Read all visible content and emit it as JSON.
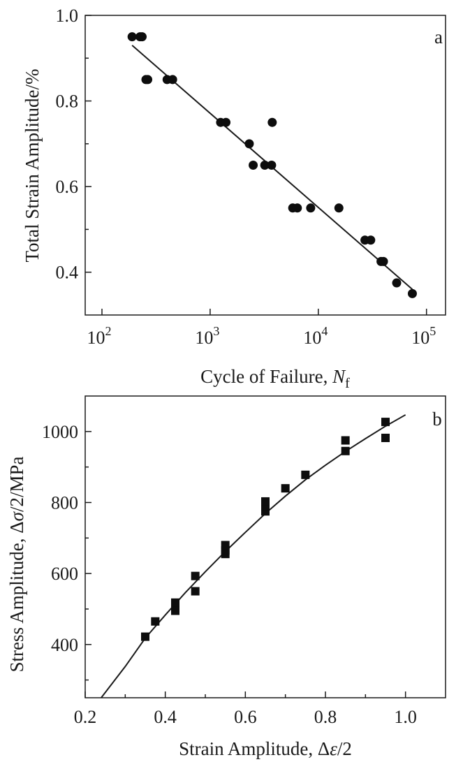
{
  "chart_data": [
    {
      "type": "scatter",
      "panel_label": "a",
      "xlabel": "Cycle of Failure, ",
      "xlabel_var": "N",
      "xlabel_sub": "f",
      "ylabel": "Total Strain Amplitude/%",
      "x_scale": "log",
      "xlim": [
        70,
        150000
      ],
      "ylim": [
        0.3,
        1.0
      ],
      "x_ticks": [
        100,
        1000,
        10000,
        100000
      ],
      "x_tick_labels": [
        {
          "base": "10",
          "exp": "2"
        },
        {
          "base": "10",
          "exp": "3"
        },
        {
          "base": "10",
          "exp": "4"
        },
        {
          "base": "10",
          "exp": "5"
        }
      ],
      "y_ticks": [
        0.4,
        0.6,
        0.8,
        1.0
      ],
      "y_tick_labels": [
        "0.4",
        "0.6",
        "0.8",
        "1.0"
      ],
      "marker": "circle",
      "grid": false,
      "points": [
        {
          "x": 190,
          "y": 0.95
        },
        {
          "x": 225,
          "y": 0.95
        },
        {
          "x": 235,
          "y": 0.95
        },
        {
          "x": 255,
          "y": 0.85
        },
        {
          "x": 265,
          "y": 0.85
        },
        {
          "x": 400,
          "y": 0.85
        },
        {
          "x": 450,
          "y": 0.85
        },
        {
          "x": 1250,
          "y": 0.75
        },
        {
          "x": 1400,
          "y": 0.75
        },
        {
          "x": 2300,
          "y": 0.7
        },
        {
          "x": 2500,
          "y": 0.65
        },
        {
          "x": 3200,
          "y": 0.65
        },
        {
          "x": 3700,
          "y": 0.65
        },
        {
          "x": 3750,
          "y": 0.75
        },
        {
          "x": 5800,
          "y": 0.55
        },
        {
          "x": 6400,
          "y": 0.55
        },
        {
          "x": 8500,
          "y": 0.55
        },
        {
          "x": 15500,
          "y": 0.55
        },
        {
          "x": 27000,
          "y": 0.475
        },
        {
          "x": 30500,
          "y": 0.475
        },
        {
          "x": 38000,
          "y": 0.425
        },
        {
          "x": 40000,
          "y": 0.425
        },
        {
          "x": 53000,
          "y": 0.375
        },
        {
          "x": 74000,
          "y": 0.35
        }
      ],
      "fit_line": {
        "x": [
          190,
          74000
        ],
        "y": [
          0.93,
          0.36
        ]
      }
    },
    {
      "type": "scatter",
      "panel_label": "b",
      "xlabel": "Strain Amplitude, Δ",
      "xlabel_var": "ε",
      "xlabel_tail": "/2",
      "ylabel": "Stress Amplitude, Δ",
      "ylabel_var": "σ",
      "ylabel_tail": "/2/MPa",
      "xlim": [
        0.2,
        1.1
      ],
      "ylim": [
        250,
        1100
      ],
      "x_ticks": [
        0.2,
        0.4,
        0.6,
        0.8,
        1.0
      ],
      "x_tick_labels": [
        "0.2",
        "0.4",
        "0.6",
        "0.8",
        "1.0"
      ],
      "y_ticks": [
        400,
        600,
        800,
        1000
      ],
      "y_tick_labels": [
        "400",
        "600",
        "800",
        "1000"
      ],
      "marker": "square",
      "grid": false,
      "points": [
        {
          "x": 0.35,
          "y": 422
        },
        {
          "x": 0.375,
          "y": 465
        },
        {
          "x": 0.425,
          "y": 495
        },
        {
          "x": 0.425,
          "y": 505
        },
        {
          "x": 0.425,
          "y": 518
        },
        {
          "x": 0.475,
          "y": 550
        },
        {
          "x": 0.475,
          "y": 593
        },
        {
          "x": 0.55,
          "y": 655
        },
        {
          "x": 0.55,
          "y": 665
        },
        {
          "x": 0.55,
          "y": 680
        },
        {
          "x": 0.65,
          "y": 775
        },
        {
          "x": 0.65,
          "y": 790
        },
        {
          "x": 0.65,
          "y": 803
        },
        {
          "x": 0.7,
          "y": 840
        },
        {
          "x": 0.75,
          "y": 878
        },
        {
          "x": 0.85,
          "y": 945
        },
        {
          "x": 0.85,
          "y": 975
        },
        {
          "x": 0.95,
          "y": 982
        },
        {
          "x": 0.95,
          "y": 1027
        }
      ],
      "fit_curve": {
        "x": [
          0.24,
          0.3,
          0.35,
          0.4,
          0.45,
          0.5,
          0.55,
          0.6,
          0.65,
          0.7,
          0.75,
          0.8,
          0.85,
          0.9,
          0.95,
          1.0
        ],
        "y": [
          250,
          338,
          418,
          483,
          546,
          605,
          662,
          716,
          769,
          818,
          864,
          905,
          944,
          980,
          1015,
          1047
        ]
      }
    }
  ]
}
